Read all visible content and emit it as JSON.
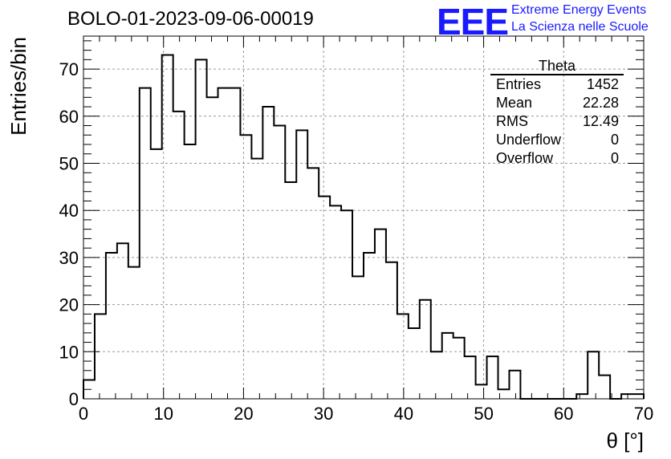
{
  "title": "BOLO-01-2023-09-06-00019",
  "logo": {
    "text": "EEE",
    "line1": "Extreme Energy Events",
    "line2": "La Scienza nelle Scuole",
    "color": "#1a1aff"
  },
  "stats": {
    "title": "Theta",
    "rows": [
      {
        "label": "Entries",
        "value": "1452"
      },
      {
        "label": "Mean",
        "value": "22.28"
      },
      {
        "label": "RMS",
        "value": "12.49"
      },
      {
        "label": "Underflow",
        "value": "0"
      },
      {
        "label": "Overflow",
        "value": "0"
      }
    ]
  },
  "chart_data": {
    "type": "histogram",
    "xlabel": "θ [°]",
    "ylabel": "Entries/bin",
    "xlim": [
      0,
      70
    ],
    "ylim": [
      0,
      77
    ],
    "bin_width": 1.4,
    "bin_edges_start": 0,
    "values": [
      4,
      18,
      31,
      33,
      28,
      66,
      53,
      73,
      61,
      54,
      72,
      64,
      66,
      66,
      56,
      51,
      62,
      58,
      46,
      57,
      49,
      43,
      41,
      40,
      26,
      31,
      36,
      29,
      18,
      15,
      21,
      10,
      14,
      13,
      9,
      3,
      9,
      2,
      6,
      0,
      0,
      0,
      0,
      0,
      1,
      10,
      5,
      0,
      1,
      1
    ],
    "xticks": [
      "0",
      "10",
      "20",
      "30",
      "40",
      "50",
      "60",
      "70"
    ],
    "yticks": [
      "0",
      "10",
      "20",
      "30",
      "40",
      "50",
      "60",
      "70"
    ],
    "grid": true,
    "line_color": "#000000"
  }
}
